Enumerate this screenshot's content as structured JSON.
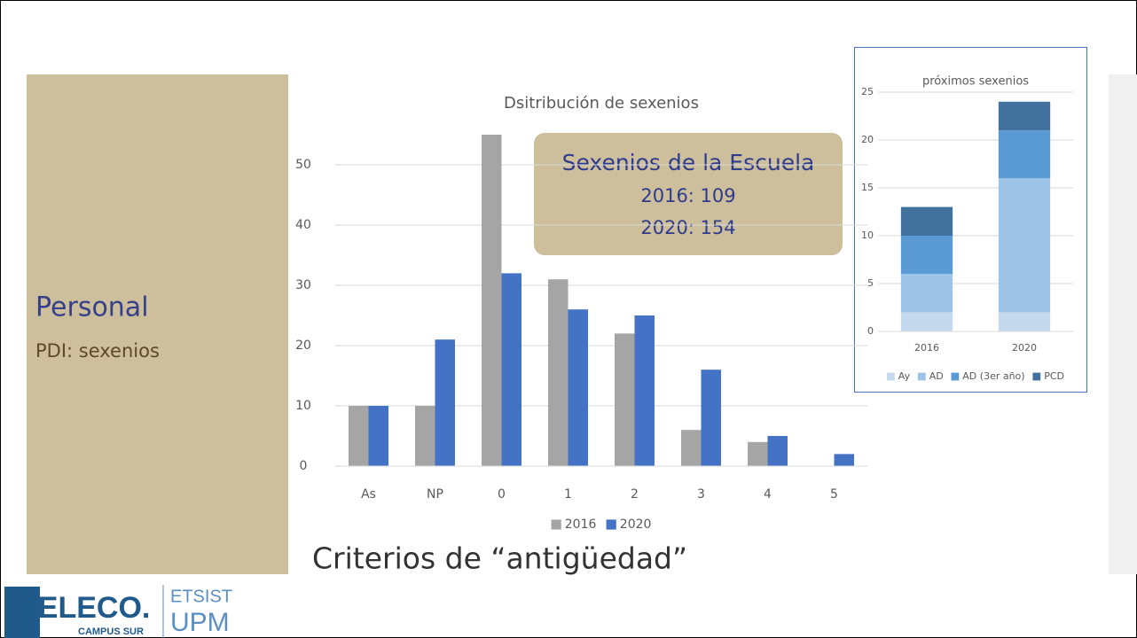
{
  "slide": {
    "title": "Personal",
    "subtitle": "PDI: sexenios",
    "callout": [
      "Sexenios de la Escuela",
      "2016: 109",
      "2020: 154"
    ],
    "footer": "Criterios de “antigüedad”",
    "logo": [
      "TELECO.",
      "CAMPUS SUR",
      "ETSIST",
      "UPM"
    ]
  },
  "chart_data": [
    {
      "type": "bar",
      "title": "Dsitribución de sexenios",
      "categories": [
        "As",
        "NP",
        "0",
        "1",
        "2",
        "3",
        "4",
        "5"
      ],
      "series": [
        {
          "name": "2016",
          "color": "#a5a5a5",
          "values": [
            10,
            10,
            55,
            31,
            22,
            6,
            4,
            0
          ]
        },
        {
          "name": "2020",
          "color": "#4472c4",
          "values": [
            10,
            21,
            32,
            26,
            25,
            16,
            5,
            2
          ]
        }
      ],
      "ylim": [
        0,
        55
      ],
      "yticks": [
        0,
        10,
        20,
        30,
        40,
        50
      ],
      "grid": true,
      "stacked": false,
      "legend": "bottom"
    },
    {
      "type": "bar",
      "title": "próximos sexenios",
      "categories": [
        "2016",
        "2020"
      ],
      "series": [
        {
          "name": "Ay",
          "color": "#c5d9ee",
          "values": [
            2,
            2
          ]
        },
        {
          "name": "AD",
          "color": "#9dc3e6",
          "values": [
            4,
            14
          ]
        },
        {
          "name": "AD (3er año)",
          "color": "#5b9bd5",
          "values": [
            4,
            5
          ]
        },
        {
          "name": "PCD",
          "color": "#41719c",
          "values": [
            3,
            3
          ]
        }
      ],
      "ylim": [
        0,
        25
      ],
      "yticks": [
        0,
        5,
        10,
        15,
        20,
        25
      ],
      "grid": true,
      "stacked": true,
      "legend": "bottom"
    }
  ]
}
